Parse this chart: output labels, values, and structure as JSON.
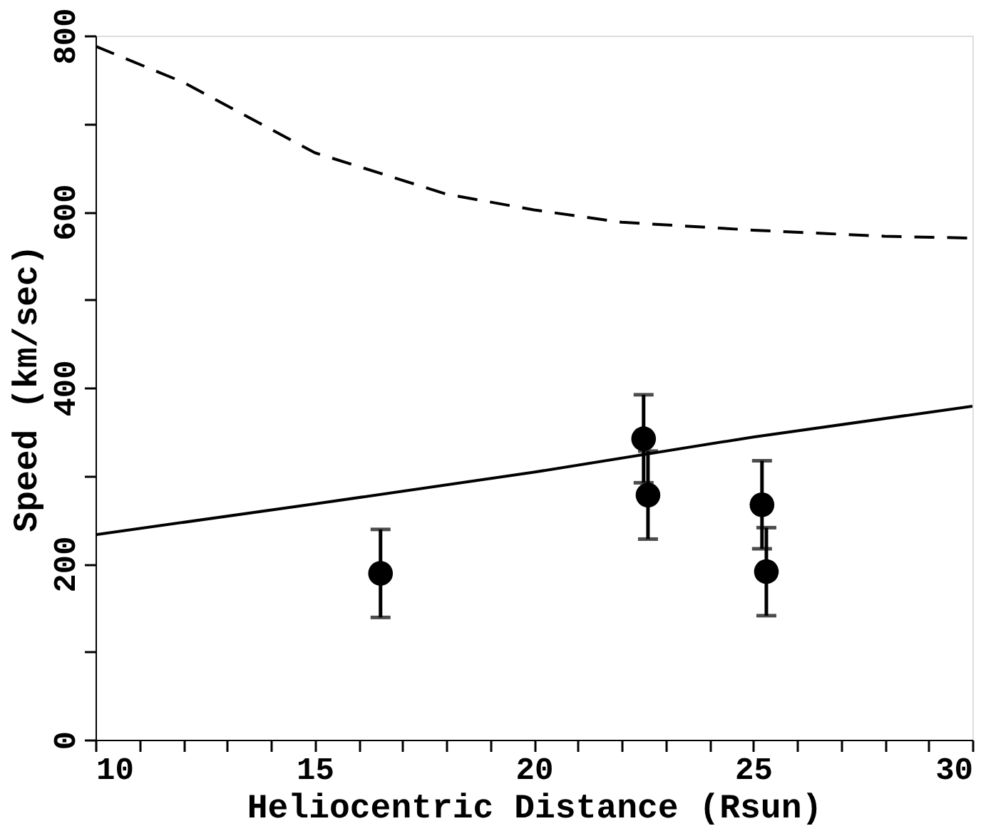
{
  "chart_data": {
    "type": "line",
    "xlabel": "Heliocentric Distance (Rsun)",
    "ylabel": "Speed (km/sec)",
    "xlim": [
      10,
      30
    ],
    "ylim": [
      0,
      800
    ],
    "xticks": [
      10,
      {
        "value": 11,
        "label": null
      },
      {
        "value": 12,
        "label": null
      },
      {
        "value": 13,
        "label": null
      },
      {
        "value": 14,
        "label": null
      },
      15,
      {
        "value": 16,
        "label": null
      },
      {
        "value": 17,
        "label": null
      },
      {
        "value": 18,
        "label": null
      },
      {
        "value": 19,
        "label": null
      },
      20,
      {
        "value": 21,
        "label": null
      },
      {
        "value": 22,
        "label": null
      },
      {
        "value": 23,
        "label": null
      },
      {
        "value": 24,
        "label": null
      },
      25,
      {
        "value": 26,
        "label": null
      },
      {
        "value": 27,
        "label": null
      },
      {
        "value": 28,
        "label": null
      },
      {
        "value": 29,
        "label": null
      },
      30
    ],
    "yticks": [
      0,
      {
        "value": 100,
        "label": null
      },
      200,
      {
        "value": 300,
        "label": null
      },
      400,
      {
        "value": 500,
        "label": null
      },
      600,
      {
        "value": 700,
        "label": null
      },
      800
    ],
    "grid": false,
    "series": [
      {
        "color": "#000000",
        "line_style": "solid",
        "x": [
          10,
          15,
          20,
          25,
          30
        ],
        "values": [
          233,
          268,
          304,
          344,
          379
        ]
      },
      {
        "color": "#000000",
        "line_style": "dashed",
        "x": [
          10,
          12,
          15,
          18,
          20,
          22,
          25,
          28,
          30
        ],
        "values": [
          788,
          747,
          667,
          620,
          602,
          588,
          579,
          572,
          570
        ]
      },
      {
        "type": "scatter",
        "color": "#000000",
        "marker": "circle",
        "x": [
          16.5,
          22.5,
          22.6,
          25.2,
          25.3
        ],
        "values": [
          189,
          342,
          278,
          267,
          191
        ],
        "errors": [
          50,
          50,
          50,
          50,
          50
        ]
      }
    ]
  }
}
